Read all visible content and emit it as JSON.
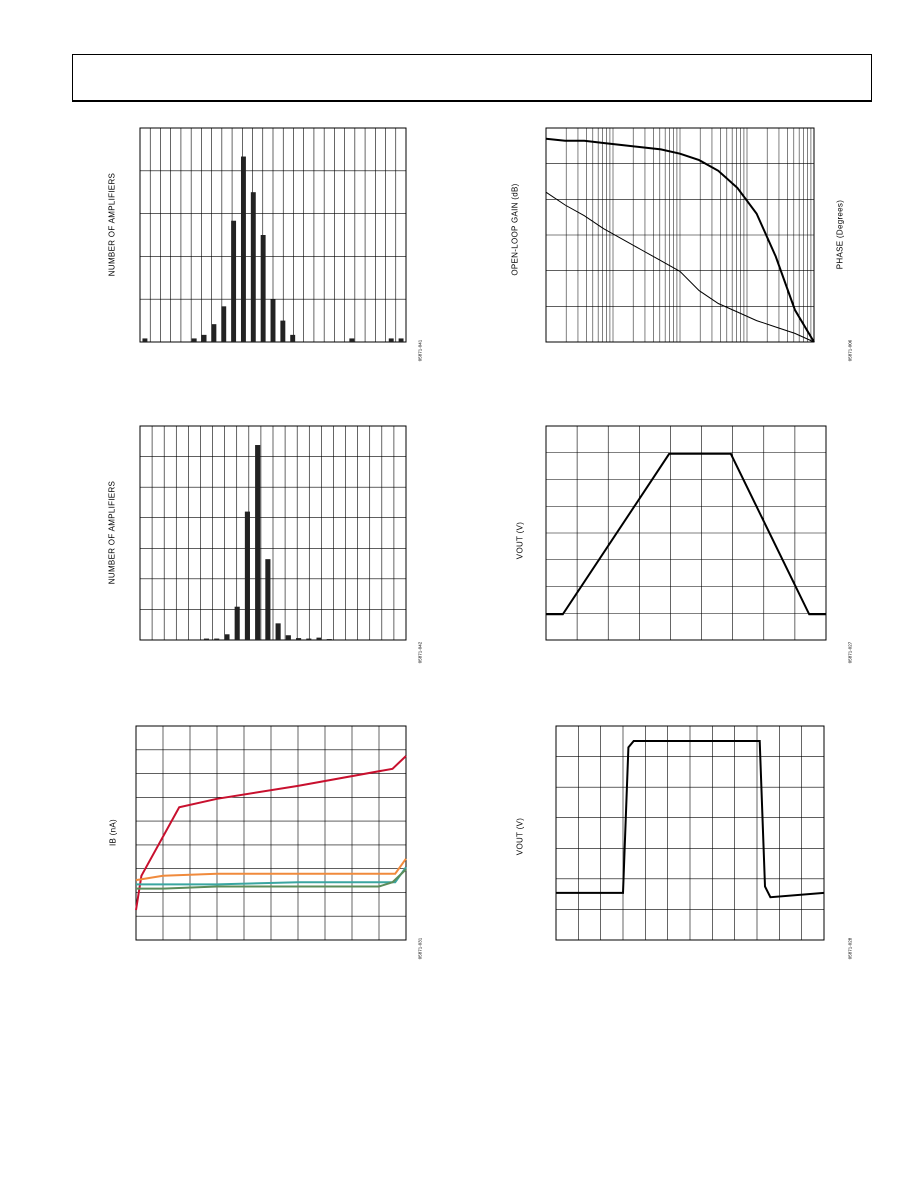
{
  "chart_data": [
    {
      "id": "hist1",
      "type": "bar",
      "ylabel": "NUMBER OF AMPLIFIERS",
      "fig_id": "05871-041",
      "values": [
        1,
        0,
        0,
        0,
        0,
        1,
        2,
        5,
        10,
        34,
        52,
        42,
        30,
        12,
        6,
        2,
        0,
        0,
        0,
        0,
        0,
        1,
        0,
        0,
        0,
        1,
        1
      ],
      "ylim": [
        0,
        60
      ],
      "grid": true
    },
    {
      "id": "hist2",
      "type": "bar",
      "ylabel": "NUMBER OF AMPLIFIERS",
      "fig_id": "05871-042",
      "values": [
        0,
        0,
        0,
        0,
        0,
        0,
        0.3,
        0.3,
        1.2,
        7,
        27,
        41,
        17,
        3.5,
        1,
        0.4,
        0.3,
        0.5,
        0.2,
        0,
        0,
        0,
        0,
        0,
        0,
        0
      ],
      "ylim": [
        0,
        45
      ],
      "grid": true
    },
    {
      "id": "openloop",
      "type": "line",
      "ylabel": "OPEN-LOOP GAIN (dB)",
      "y2label": "PHASE (Degrees)",
      "fig_id": "05871-006",
      "xscale": "log",
      "grid": true,
      "series": [
        {
          "values_y": [
            0.95,
            0.94,
            0.94,
            0.93,
            0.92,
            0.91,
            0.9,
            0.88,
            0.85,
            0.8,
            0.72,
            0.6,
            0.4,
            0.15,
            0.0
          ]
        },
        {
          "values_y": [
            0.7,
            0.64,
            0.59,
            0.53,
            0.48,
            0.43,
            0.38,
            0.33,
            0.24,
            0.18,
            0.14,
            0.1,
            0.07,
            0.04,
            0.0
          ]
        }
      ]
    },
    {
      "id": "largesignal",
      "type": "line",
      "ylabel": "VOUT (V)",
      "fig_id": "05871-027",
      "grid": true,
      "series": [
        {
          "x": [
            0,
            0.06,
            0.44,
            0.66,
            0.94,
            1.0
          ],
          "y": [
            0.12,
            0.12,
            0.87,
            0.87,
            0.12,
            0.12
          ]
        }
      ]
    },
    {
      "id": "ib",
      "type": "line",
      "ylabel": "IB (nA)",
      "fig_id": "05871-031",
      "grid": true,
      "series": [
        {
          "color": "#c8102e",
          "x": [
            0,
            0.02,
            0.16,
            0.3,
            0.6,
            0.95,
            1.0
          ],
          "y": [
            0.14,
            0.3,
            0.62,
            0.66,
            0.72,
            0.8,
            0.86
          ]
        },
        {
          "color": "#f08a3c",
          "x": [
            0,
            0.1,
            0.3,
            0.6,
            0.9,
            0.96,
            1.0
          ],
          "y": [
            0.28,
            0.3,
            0.31,
            0.31,
            0.31,
            0.31,
            0.38
          ]
        },
        {
          "color": "#3aa6a0",
          "x": [
            0,
            0.1,
            0.3,
            0.6,
            0.9,
            0.96,
            1.0
          ],
          "y": [
            0.26,
            0.26,
            0.26,
            0.27,
            0.27,
            0.27,
            0.34
          ]
        },
        {
          "color": "#5b8c5a",
          "x": [
            0,
            0.1,
            0.3,
            0.6,
            0.9,
            0.95,
            1.0
          ],
          "y": [
            0.24,
            0.24,
            0.25,
            0.25,
            0.25,
            0.27,
            0.33
          ]
        }
      ]
    },
    {
      "id": "smallsignal",
      "type": "line",
      "ylabel": "VOUT (V)",
      "fig_id": "05871-028",
      "grid": true,
      "series": [
        {
          "x": [
            0,
            0.25,
            0.27,
            0.29,
            0.76,
            0.78,
            0.8,
            1.0
          ],
          "y": [
            0.22,
            0.22,
            0.9,
            0.93,
            0.93,
            0.25,
            0.2,
            0.22
          ]
        }
      ]
    }
  ]
}
